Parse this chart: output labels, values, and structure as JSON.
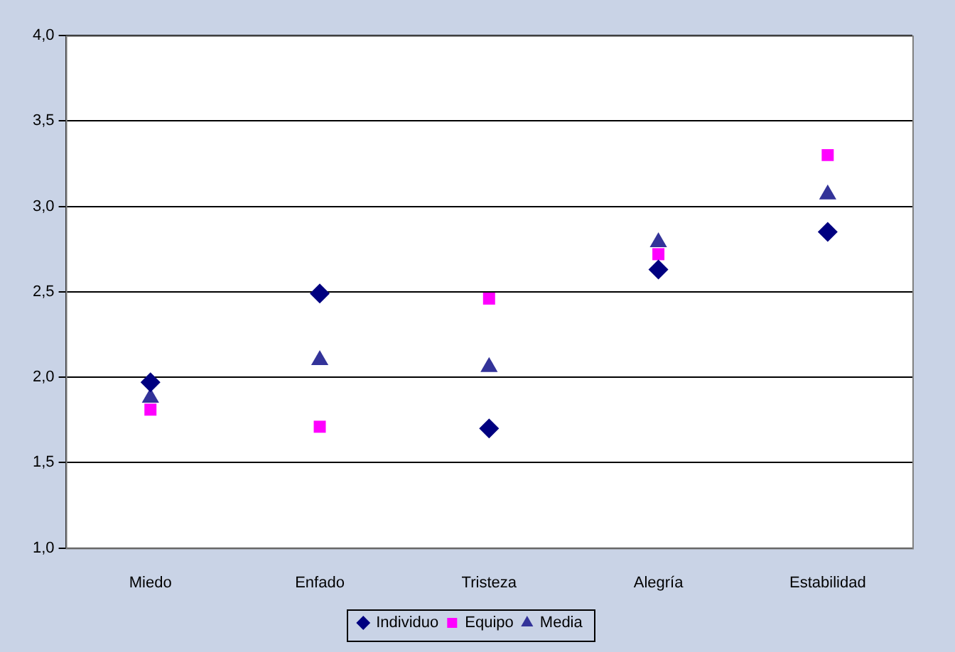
{
  "chart_data": {
    "type": "scatter",
    "categories": [
      "Miedo",
      "Enfado",
      "Tristeza",
      "Alegría",
      "Estabilidad"
    ],
    "series": [
      {
        "name": "Individuo",
        "color": "#000080",
        "marker": "diamond",
        "values": [
          1.97,
          2.49,
          1.7,
          2.63,
          2.85
        ]
      },
      {
        "name": "Equipo",
        "color": "#ff00ff",
        "marker": "square",
        "values": [
          1.81,
          1.71,
          2.46,
          2.72,
          3.3
        ]
      },
      {
        "name": "Media",
        "color": "#333399",
        "marker": "triangle",
        "values": [
          1.88,
          2.1,
          2.06,
          2.79,
          3.07
        ]
      }
    ],
    "ylim": [
      1,
      4
    ],
    "yticks": [
      {
        "value": 1,
        "label": "1,0"
      },
      {
        "value": 1.5,
        "label": "1,5"
      },
      {
        "value": 2,
        "label": "2,0"
      },
      {
        "value": 2.5,
        "label": "2,5"
      },
      {
        "value": 3,
        "label": "3,0"
      },
      {
        "value": 3.5,
        "label": "3,5"
      },
      {
        "value": 4,
        "label": "4,0"
      }
    ],
    "grid": "y",
    "legend": "bottom"
  }
}
